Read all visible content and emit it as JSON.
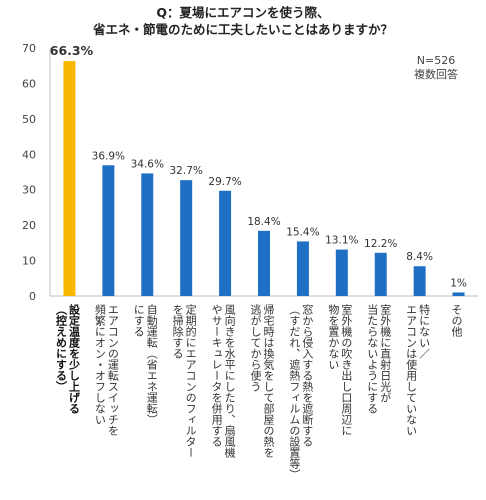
{
  "chart_data": {
    "type": "bar",
    "title_lines": [
      "Q：夏場にエアコンを使う際、",
      "省エネ・節電のために工夫したいことはありますか？"
    ],
    "note_lines": [
      "N=526",
      "複数回答"
    ],
    "ylim": [
      0,
      70
    ],
    "yticks": [
      0,
      10,
      20,
      30,
      40,
      50,
      60,
      70
    ],
    "grid": false,
    "highlight_color": "#F9B800",
    "bar_color": "#1F6FC5",
    "categories": [
      [
        "設定温度を少し上げる",
        "（控えめにする）"
      ],
      [
        "エアコンの運転スイッチを",
        "頻繁にオン・オフしない"
      ],
      [
        "自動運転（省エネ運転）",
        "にする"
      ],
      [
        "定期的にエアコンのフィルター",
        "を掃除する"
      ],
      [
        "風向きを水平にしたり、扇風機",
        "やサーキュレータを併用する"
      ],
      [
        "帰宅時は換気をして部屋の熱を",
        "逃がしてから使う"
      ],
      [
        "窓から侵入する熱を遮断する",
        "（すだれ、遮熱フィルムの設置等）"
      ],
      [
        "室外機の吹き出し口周辺に",
        "物を置かない"
      ],
      [
        "室外機に直射日光が",
        "当たらないようにする"
      ],
      [
        "特にない／",
        "エアコンは使用していない"
      ],
      [
        "その他"
      ]
    ],
    "values": [
      66.3,
      36.9,
      34.6,
      32.7,
      29.7,
      18.4,
      15.4,
      13.1,
      12.2,
      8.4,
      1
    ],
    "value_labels": [
      "66.3%",
      "36.9%",
      "34.6%",
      "32.7%",
      "29.7%",
      "18.4%",
      "15.4%",
      "13.1%",
      "12.2%",
      "8.4%",
      "1%"
    ],
    "highlight_index": 0
  }
}
